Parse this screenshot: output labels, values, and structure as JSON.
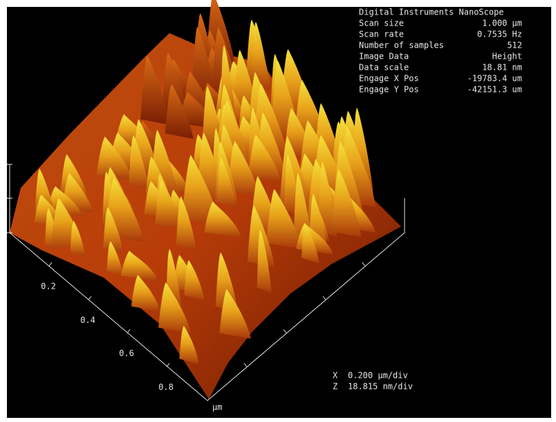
{
  "info": {
    "title": "Digital Instruments NanoScope",
    "rows": [
      [
        "Scan size",
        "1.000 µm"
      ],
      [
        "Scan rate",
        "0.7535 Hz"
      ],
      [
        "Number of samples",
        "512"
      ],
      [
        "Image Data",
        "Height"
      ],
      [
        "Data scale",
        "18.81 nm"
      ],
      [
        "Engage X Pos",
        "-19783.4 um"
      ],
      [
        "Engage Y Pos",
        "-42151.3 um"
      ]
    ]
  },
  "axis": {
    "tick_labels": [
      "0.2",
      "0.4",
      "0.6",
      "0.8"
    ],
    "unit": "µm"
  },
  "scale": {
    "x_symbol": "X",
    "x_value": "0.200 µm/div",
    "z_symbol": "Z",
    "z_value": "18.815 nm/div"
  }
}
